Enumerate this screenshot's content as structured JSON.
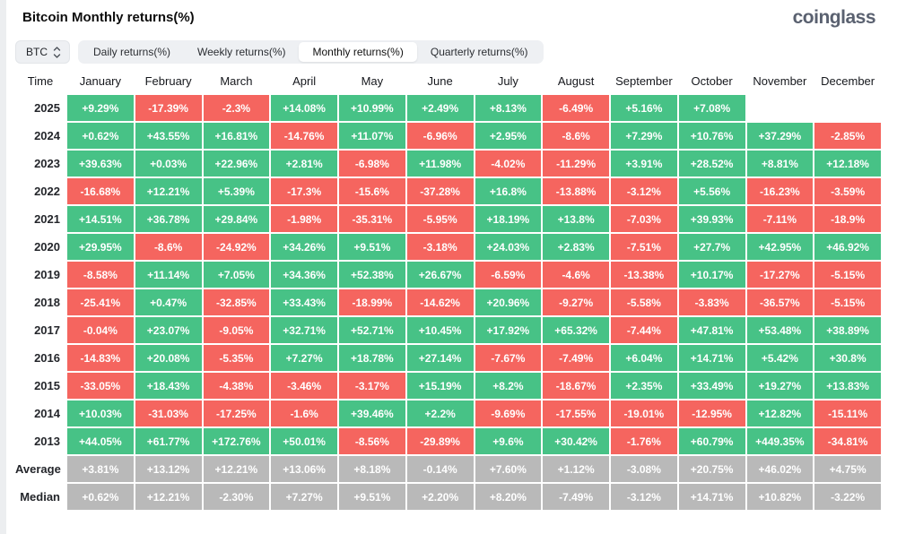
{
  "page": {
    "title": "Bitcoin Monthly returns(%)",
    "logo": "coinglass"
  },
  "controls": {
    "symbol_select": {
      "value": "BTC"
    },
    "tabs": [
      {
        "label": "Daily returns(%)",
        "active": false
      },
      {
        "label": "Weekly returns(%)",
        "active": false
      },
      {
        "label": "Monthly returns(%)",
        "active": true
      },
      {
        "label": "Quarterly returns(%)",
        "active": false
      }
    ]
  },
  "colors": {
    "positive": "#47c286",
    "negative": "#f5655f",
    "summary": "#b9b9b9",
    "cell_text": "#ffffff"
  },
  "chart_data": {
    "type": "table",
    "columns": [
      "Time",
      "January",
      "February",
      "March",
      "April",
      "May",
      "June",
      "July",
      "August",
      "September",
      "October",
      "November",
      "December"
    ],
    "rows": [
      {
        "label": "2025",
        "kind": "year",
        "values": [
          "+9.29%",
          "-17.39%",
          "-2.3%",
          "+14.08%",
          "+10.99%",
          "+2.49%",
          "+8.13%",
          "-6.49%",
          "+5.16%",
          "+7.08%",
          null,
          null
        ]
      },
      {
        "label": "2024",
        "kind": "year",
        "values": [
          "+0.62%",
          "+43.55%",
          "+16.81%",
          "-14.76%",
          "+11.07%",
          "-6.96%",
          "+2.95%",
          "-8.6%",
          "+7.29%",
          "+10.76%",
          "+37.29%",
          "-2.85%"
        ]
      },
      {
        "label": "2023",
        "kind": "year",
        "values": [
          "+39.63%",
          "+0.03%",
          "+22.96%",
          "+2.81%",
          "-6.98%",
          "+11.98%",
          "-4.02%",
          "-11.29%",
          "+3.91%",
          "+28.52%",
          "+8.81%",
          "+12.18%"
        ]
      },
      {
        "label": "2022",
        "kind": "year",
        "values": [
          "-16.68%",
          "+12.21%",
          "+5.39%",
          "-17.3%",
          "-15.6%",
          "-37.28%",
          "+16.8%",
          "-13.88%",
          "-3.12%",
          "+5.56%",
          "-16.23%",
          "-3.59%"
        ]
      },
      {
        "label": "2021",
        "kind": "year",
        "values": [
          "+14.51%",
          "+36.78%",
          "+29.84%",
          "-1.98%",
          "-35.31%",
          "-5.95%",
          "+18.19%",
          "+13.8%",
          "-7.03%",
          "+39.93%",
          "-7.11%",
          "-18.9%"
        ]
      },
      {
        "label": "2020",
        "kind": "year",
        "values": [
          "+29.95%",
          "-8.6%",
          "-24.92%",
          "+34.26%",
          "+9.51%",
          "-3.18%",
          "+24.03%",
          "+2.83%",
          "-7.51%",
          "+27.7%",
          "+42.95%",
          "+46.92%"
        ]
      },
      {
        "label": "2019",
        "kind": "year",
        "values": [
          "-8.58%",
          "+11.14%",
          "+7.05%",
          "+34.36%",
          "+52.38%",
          "+26.67%",
          "-6.59%",
          "-4.6%",
          "-13.38%",
          "+10.17%",
          "-17.27%",
          "-5.15%"
        ]
      },
      {
        "label": "2018",
        "kind": "year",
        "values": [
          "-25.41%",
          "+0.47%",
          "-32.85%",
          "+33.43%",
          "-18.99%",
          "-14.62%",
          "+20.96%",
          "-9.27%",
          "-5.58%",
          "-3.83%",
          "-36.57%",
          "-5.15%"
        ]
      },
      {
        "label": "2017",
        "kind": "year",
        "values": [
          "-0.04%",
          "+23.07%",
          "-9.05%",
          "+32.71%",
          "+52.71%",
          "+10.45%",
          "+17.92%",
          "+65.32%",
          "-7.44%",
          "+47.81%",
          "+53.48%",
          "+38.89%"
        ]
      },
      {
        "label": "2016",
        "kind": "year",
        "values": [
          "-14.83%",
          "+20.08%",
          "-5.35%",
          "+7.27%",
          "+18.78%",
          "+27.14%",
          "-7.67%",
          "-7.49%",
          "+6.04%",
          "+14.71%",
          "+5.42%",
          "+30.8%"
        ]
      },
      {
        "label": "2015",
        "kind": "year",
        "values": [
          "-33.05%",
          "+18.43%",
          "-4.38%",
          "-3.46%",
          "-3.17%",
          "+15.19%",
          "+8.2%",
          "-18.67%",
          "+2.35%",
          "+33.49%",
          "+19.27%",
          "+13.83%"
        ]
      },
      {
        "label": "2014",
        "kind": "year",
        "values": [
          "+10.03%",
          "-31.03%",
          "-17.25%",
          "-1.6%",
          "+39.46%",
          "+2.2%",
          "-9.69%",
          "-17.55%",
          "-19.01%",
          "-12.95%",
          "+12.82%",
          "-15.11%"
        ]
      },
      {
        "label": "2013",
        "kind": "year",
        "values": [
          "+44.05%",
          "+61.77%",
          "+172.76%",
          "+50.01%",
          "-8.56%",
          "-29.89%",
          "+9.6%",
          "+30.42%",
          "-1.76%",
          "+60.79%",
          "+449.35%",
          "-34.81%"
        ]
      },
      {
        "label": "Average",
        "kind": "summary",
        "values": [
          "+3.81%",
          "+13.12%",
          "+12.21%",
          "+13.06%",
          "+8.18%",
          "-0.14%",
          "+7.60%",
          "+1.12%",
          "-3.08%",
          "+20.75%",
          "+46.02%",
          "+4.75%"
        ]
      },
      {
        "label": "Median",
        "kind": "summary",
        "values": [
          "+0.62%",
          "+12.21%",
          "-2.30%",
          "+7.27%",
          "+9.51%",
          "+2.20%",
          "+8.20%",
          "-7.49%",
          "-3.12%",
          "+14.71%",
          "+10.82%",
          "-3.22%"
        ]
      }
    ]
  }
}
